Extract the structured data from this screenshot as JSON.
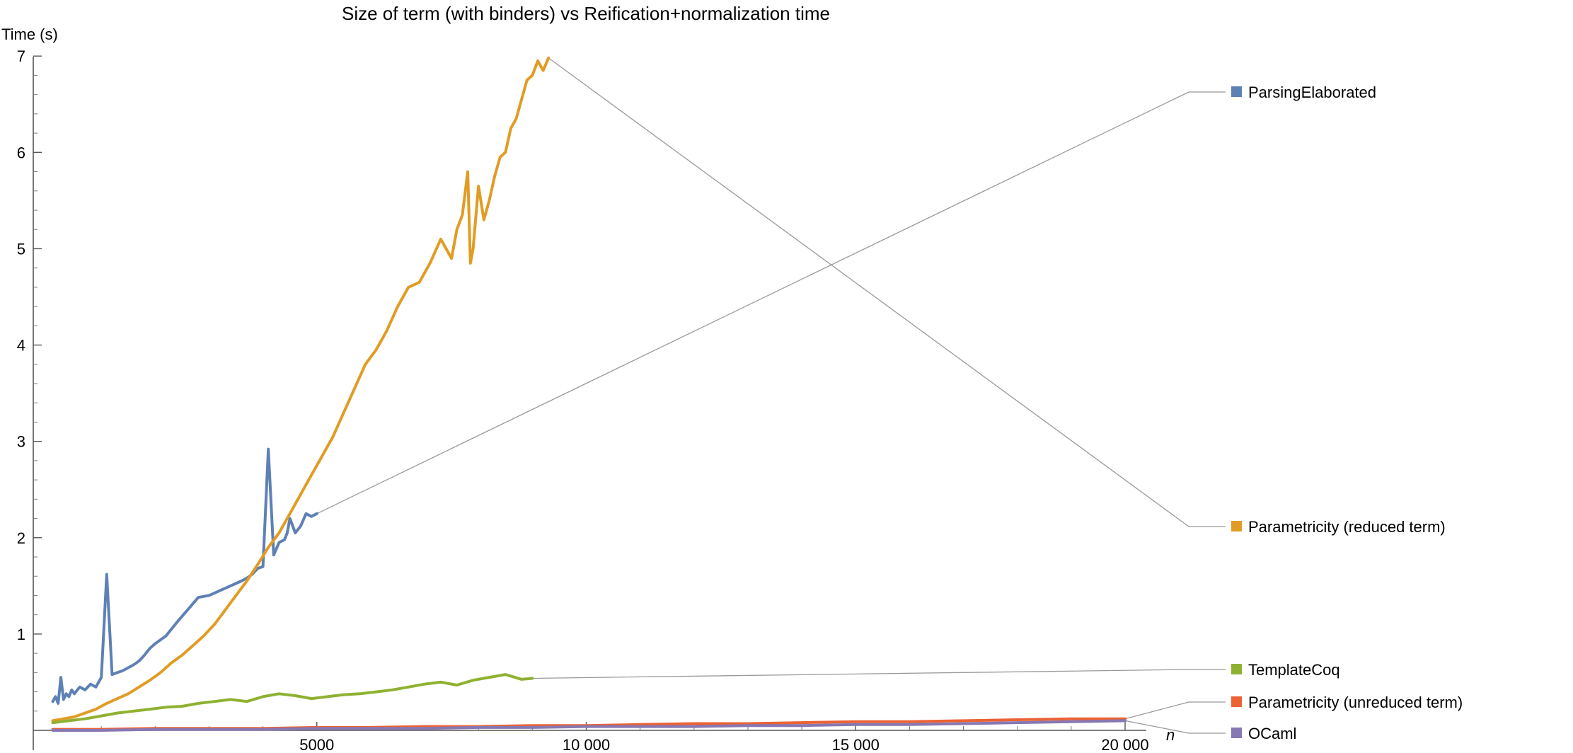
{
  "chart_data": {
    "type": "line",
    "title": "Size of term (with binders) vs Reification+normalization time",
    "xlabel": "n",
    "ylabel": "Time (s)",
    "xlim": [
      0,
      20000
    ],
    "ylim": [
      0,
      7.2
    ],
    "xticks": [
      5000,
      10000,
      15000,
      20000
    ],
    "xtick_labels": [
      "5000",
      "10 000",
      "15 000",
      "20 000"
    ],
    "yticks": [
      1,
      2,
      3,
      4,
      5,
      6,
      7
    ],
    "grid": false,
    "legend_placement": "right",
    "series": [
      {
        "name": "ParsingElaborated",
        "color": "#5e81b5",
        "x": [
          100,
          150,
          200,
          250,
          300,
          350,
          400,
          450,
          500,
          600,
          700,
          800,
          900,
          1000,
          1100,
          1200,
          1300,
          1400,
          1500,
          1600,
          1700,
          1750,
          1800,
          1900,
          2000,
          2200,
          2400,
          2600,
          2800,
          3000,
          3200,
          3400,
          3600,
          3700,
          3800,
          3900,
          4000,
          4100,
          4200,
          4300,
          4400,
          4450,
          4500,
          4600,
          4700,
          4800,
          4900,
          5000
        ],
        "y": [
          0.3,
          0.35,
          0.28,
          0.55,
          0.32,
          0.38,
          0.35,
          0.42,
          0.38,
          0.45,
          0.42,
          0.48,
          0.45,
          0.55,
          1.62,
          0.58,
          0.6,
          0.62,
          0.65,
          0.68,
          0.72,
          0.75,
          0.78,
          0.85,
          0.9,
          0.98,
          1.12,
          1.25,
          1.38,
          1.4,
          1.45,
          1.5,
          1.55,
          1.58,
          1.62,
          1.68,
          1.7,
          2.92,
          1.82,
          1.95,
          1.98,
          2.05,
          2.2,
          2.05,
          2.12,
          2.25,
          2.22,
          2.25
        ]
      },
      {
        "name": "Parametricity (reduced term)",
        "color": "#e19c24",
        "x": [
          100,
          300,
          500,
          700,
          900,
          1100,
          1300,
          1500,
          1700,
          1900,
          2100,
          2300,
          2500,
          2700,
          2900,
          3100,
          3300,
          3500,
          3700,
          3900,
          4100,
          4300,
          4500,
          4700,
          4900,
          5100,
          5300,
          5500,
          5700,
          5900,
          6100,
          6300,
          6500,
          6700,
          6900,
          7100,
          7300,
          7500,
          7600,
          7700,
          7800,
          7850,
          7900,
          8000,
          8100,
          8200,
          8300,
          8400,
          8500,
          8600,
          8700,
          8800,
          8900,
          9000,
          9100,
          9200,
          9300
        ],
        "y": [
          0.1,
          0.12,
          0.14,
          0.18,
          0.22,
          0.28,
          0.33,
          0.38,
          0.45,
          0.52,
          0.6,
          0.7,
          0.78,
          0.88,
          0.98,
          1.1,
          1.25,
          1.4,
          1.55,
          1.72,
          1.9,
          2.05,
          2.25,
          2.45,
          2.65,
          2.85,
          3.05,
          3.3,
          3.55,
          3.8,
          3.95,
          4.15,
          4.4,
          4.6,
          4.65,
          4.85,
          5.1,
          4.9,
          5.2,
          5.35,
          5.8,
          4.85,
          5.0,
          5.65,
          5.3,
          5.5,
          5.75,
          5.95,
          6.0,
          6.25,
          6.35,
          6.55,
          6.75,
          6.8,
          6.95,
          6.85,
          6.98
        ]
      },
      {
        "name": "TemplateCoq",
        "color": "#8fb131",
        "x": [
          100,
          400,
          700,
          1000,
          1300,
          1600,
          1900,
          2200,
          2500,
          2800,
          3100,
          3400,
          3700,
          4000,
          4300,
          4600,
          4900,
          5200,
          5500,
          5800,
          6100,
          6400,
          6700,
          7000,
          7300,
          7600,
          7900,
          8200,
          8500,
          8800,
          9000
        ],
        "y": [
          0.08,
          0.1,
          0.12,
          0.15,
          0.18,
          0.2,
          0.22,
          0.24,
          0.25,
          0.28,
          0.3,
          0.32,
          0.3,
          0.35,
          0.38,
          0.36,
          0.33,
          0.35,
          0.37,
          0.38,
          0.4,
          0.42,
          0.45,
          0.48,
          0.5,
          0.47,
          0.52,
          0.55,
          0.58,
          0.53,
          0.54
        ]
      },
      {
        "name": "Parametricity (unreduced term)",
        "color": "#eb6235",
        "x": [
          100,
          1000,
          2000,
          3000,
          4000,
          5000,
          6000,
          7000,
          8000,
          9000,
          10000,
          11000,
          12000,
          13000,
          14000,
          15000,
          16000,
          17000,
          18000,
          19000,
          20000
        ],
        "y": [
          0.01,
          0.01,
          0.02,
          0.02,
          0.02,
          0.03,
          0.03,
          0.04,
          0.04,
          0.05,
          0.05,
          0.06,
          0.07,
          0.07,
          0.08,
          0.09,
          0.09,
          0.1,
          0.11,
          0.12,
          0.12
        ]
      },
      {
        "name": "OCaml",
        "color": "#8778b3",
        "x": [
          100,
          1000,
          2000,
          3000,
          4000,
          5000,
          6000,
          7000,
          8000,
          9000,
          10000,
          11000,
          12000,
          13000,
          14000,
          15000,
          16000,
          17000,
          18000,
          19000,
          20000
        ],
        "y": [
          0.0,
          0.0,
          0.01,
          0.01,
          0.01,
          0.02,
          0.02,
          0.02,
          0.03,
          0.03,
          0.04,
          0.04,
          0.04,
          0.05,
          0.05,
          0.06,
          0.06,
          0.07,
          0.08,
          0.09,
          0.1
        ]
      }
    ]
  }
}
